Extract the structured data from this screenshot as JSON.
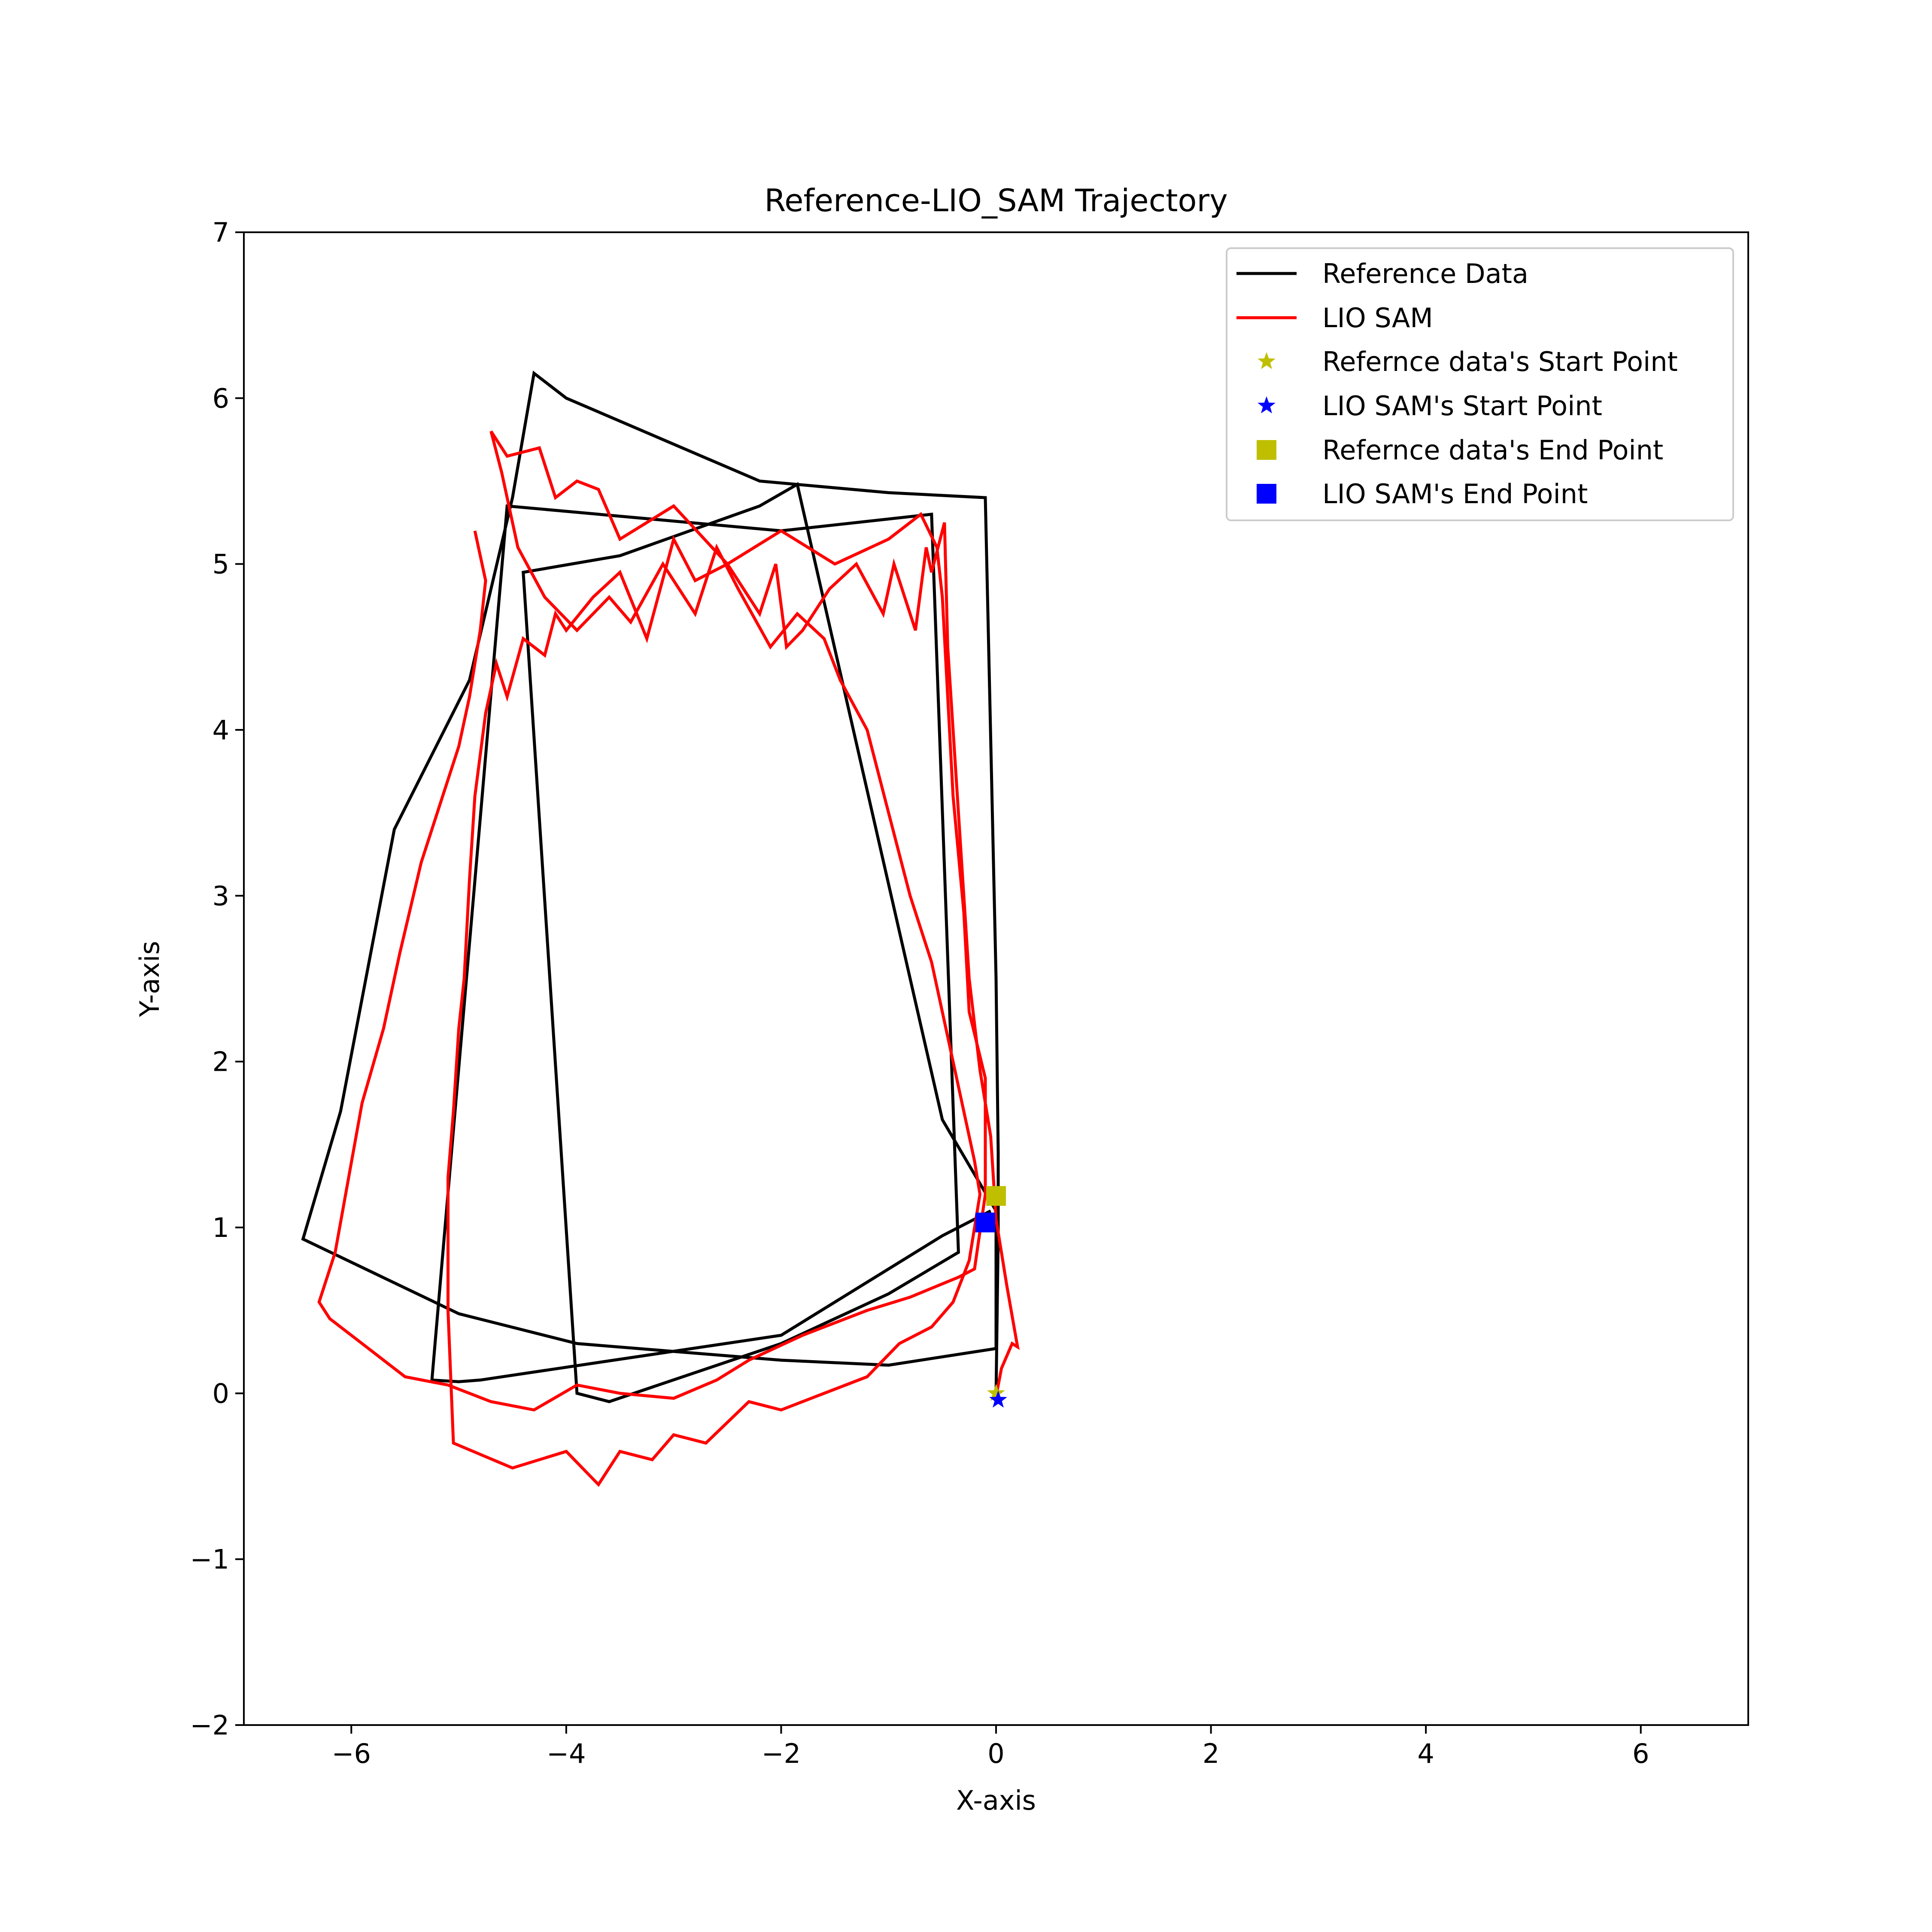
{
  "chart_data": {
    "type": "line",
    "title": "Reference-LIO_SAM Trajectory",
    "xlabel": "X-axis",
    "ylabel": "Y-axis",
    "xlim": [
      -7,
      7
    ],
    "ylim": [
      -2,
      7
    ],
    "xticks": [
      -6,
      -4,
      -2,
      0,
      2,
      4,
      6
    ],
    "yticks": [
      -2,
      -1,
      0,
      1,
      2,
      3,
      4,
      5,
      6,
      7
    ],
    "xtick_labels": [
      "−6",
      "−4",
      "−2",
      "0",
      "2",
      "4",
      "6"
    ],
    "ytick_labels": [
      "−2",
      "−1",
      "0",
      "1",
      "2",
      "3",
      "4",
      "5",
      "6",
      "7"
    ],
    "grid": false,
    "legend_position": "top-right",
    "series": [
      {
        "name": "Reference Data",
        "kind": "line",
        "color": "#000000",
        "points": [
          [
            0.0,
            0.0
          ],
          [
            0.02,
            0.95
          ],
          [
            0.02,
            1.45
          ],
          [
            0.0,
            2.5
          ],
          [
            -0.1,
            5.4
          ],
          [
            -1.0,
            5.43
          ],
          [
            -2.2,
            5.5
          ],
          [
            -4.0,
            6.0
          ],
          [
            -4.3,
            6.15
          ],
          [
            -4.5,
            5.4
          ],
          [
            -4.9,
            4.3
          ],
          [
            -5.6,
            3.4
          ],
          [
            -6.1,
            1.7
          ],
          [
            -6.45,
            0.93
          ],
          [
            -5.0,
            0.48
          ],
          [
            -3.9,
            0.3
          ],
          [
            -2.0,
            0.2
          ],
          [
            -1.0,
            0.17
          ],
          [
            0.0,
            0.27
          ],
          [
            0.0,
            1.1
          ],
          [
            -0.5,
            1.65
          ],
          [
            -1.85,
            5.48
          ],
          [
            -2.2,
            5.35
          ],
          [
            -3.5,
            5.05
          ],
          [
            -4.4,
            4.95
          ],
          [
            -3.9,
            0.0
          ],
          [
            -3.6,
            -0.05
          ],
          [
            -2.0,
            0.3
          ],
          [
            -1.0,
            0.6
          ],
          [
            -0.35,
            0.85
          ],
          [
            -0.6,
            5.3
          ],
          [
            -2.0,
            5.2
          ],
          [
            -4.55,
            5.35
          ],
          [
            -5.25,
            0.08
          ],
          [
            -5.0,
            0.07
          ],
          [
            -4.8,
            0.08
          ],
          [
            -2.0,
            0.35
          ],
          [
            -0.5,
            0.95
          ],
          [
            -0.05,
            1.1
          ]
        ]
      },
      {
        "name": "LIO SAM",
        "kind": "line",
        "color": "#ff0000",
        "points": [
          [
            0.0,
            -0.02
          ],
          [
            0.05,
            0.15
          ],
          [
            0.15,
            0.3
          ],
          [
            0.2,
            0.28
          ],
          [
            0.1,
            0.65
          ],
          [
            0.0,
            1.05
          ],
          [
            -0.05,
            1.55
          ],
          [
            -0.15,
            1.95
          ],
          [
            -0.25,
            2.5
          ],
          [
            -0.3,
            3.0
          ],
          [
            -0.35,
            3.5
          ],
          [
            -0.4,
            4.0
          ],
          [
            -0.45,
            4.5
          ],
          [
            -0.48,
            5.25
          ],
          [
            -0.6,
            4.95
          ],
          [
            -0.65,
            5.1
          ],
          [
            -0.75,
            4.6
          ],
          [
            -0.95,
            5.0
          ],
          [
            -1.05,
            4.7
          ],
          [
            -1.3,
            5.0
          ],
          [
            -1.55,
            4.85
          ],
          [
            -1.8,
            4.6
          ],
          [
            -1.95,
            4.5
          ],
          [
            -2.05,
            5.0
          ],
          [
            -2.2,
            4.7
          ],
          [
            -2.5,
            5.0
          ],
          [
            -2.8,
            4.9
          ],
          [
            -3.0,
            5.15
          ],
          [
            -3.25,
            4.55
          ],
          [
            -3.5,
            4.95
          ],
          [
            -3.75,
            4.8
          ],
          [
            -4.0,
            4.6
          ],
          [
            -4.1,
            4.7
          ],
          [
            -4.2,
            4.45
          ],
          [
            -4.4,
            4.55
          ],
          [
            -4.55,
            4.2
          ],
          [
            -4.65,
            4.4
          ],
          [
            -4.75,
            4.1
          ],
          [
            -4.85,
            3.6
          ],
          [
            -4.9,
            3.1
          ],
          [
            -4.95,
            2.5
          ],
          [
            -5.0,
            2.2
          ],
          [
            -5.05,
            1.7
          ],
          [
            -5.1,
            1.3
          ],
          [
            -5.1,
            0.5
          ],
          [
            -5.05,
            -0.3
          ],
          [
            -4.5,
            -0.45
          ],
          [
            -4.0,
            -0.35
          ],
          [
            -3.7,
            -0.55
          ],
          [
            -3.5,
            -0.35
          ],
          [
            -3.2,
            -0.4
          ],
          [
            -3.0,
            -0.25
          ],
          [
            -2.7,
            -0.3
          ],
          [
            -2.3,
            -0.05
          ],
          [
            -2.0,
            -0.1
          ],
          [
            -1.6,
            0.0
          ],
          [
            -1.2,
            0.1
          ],
          [
            -0.9,
            0.3
          ],
          [
            -0.6,
            0.4
          ],
          [
            -0.4,
            0.55
          ],
          [
            -0.25,
            0.8
          ],
          [
            -0.15,
            1.2
          ],
          [
            -0.2,
            1.4
          ],
          [
            -0.4,
            2.0
          ],
          [
            -0.6,
            2.6
          ],
          [
            -0.8,
            3.0
          ],
          [
            -1.0,
            3.5
          ],
          [
            -1.2,
            4.0
          ],
          [
            -1.45,
            4.3
          ],
          [
            -1.6,
            4.55
          ],
          [
            -1.85,
            4.7
          ],
          [
            -2.1,
            4.5
          ],
          [
            -2.4,
            4.85
          ],
          [
            -2.6,
            5.1
          ],
          [
            -2.8,
            4.7
          ],
          [
            -3.1,
            5.0
          ],
          [
            -3.4,
            4.65
          ],
          [
            -3.6,
            4.8
          ],
          [
            -3.9,
            4.6
          ],
          [
            -4.2,
            4.8
          ],
          [
            -4.45,
            5.1
          ],
          [
            -4.6,
            5.55
          ],
          [
            -4.7,
            5.8
          ],
          [
            -4.55,
            5.65
          ],
          [
            -4.25,
            5.7
          ],
          [
            -4.1,
            5.4
          ],
          [
            -3.9,
            5.5
          ],
          [
            -3.7,
            5.45
          ],
          [
            -3.5,
            5.15
          ],
          [
            -3.0,
            5.35
          ],
          [
            -2.5,
            5.0
          ],
          [
            -2.0,
            5.2
          ],
          [
            -1.5,
            5.0
          ],
          [
            -1.0,
            5.15
          ],
          [
            -0.7,
            5.3
          ],
          [
            -0.55,
            5.1
          ],
          [
            -0.5,
            4.8
          ],
          [
            -0.4,
            3.6
          ],
          [
            -0.3,
            2.9
          ],
          [
            -0.25,
            2.3
          ],
          [
            -0.1,
            1.9
          ],
          [
            -0.1,
            1.2
          ],
          [
            -0.2,
            0.75
          ],
          [
            -0.35,
            0.7
          ],
          [
            -0.8,
            0.58
          ],
          [
            -1.2,
            0.5
          ],
          [
            -1.8,
            0.35
          ],
          [
            -2.3,
            0.2
          ],
          [
            -2.6,
            0.08
          ],
          [
            -3.0,
            -0.03
          ],
          [
            -3.5,
            0.0
          ],
          [
            -3.9,
            0.05
          ],
          [
            -4.3,
            -0.1
          ],
          [
            -4.7,
            -0.05
          ],
          [
            -5.1,
            0.05
          ],
          [
            -5.5,
            0.1
          ],
          [
            -5.9,
            0.3
          ],
          [
            -6.2,
            0.45
          ],
          [
            -6.3,
            0.55
          ],
          [
            -6.15,
            0.85
          ],
          [
            -5.9,
            1.75
          ],
          [
            -5.7,
            2.2
          ],
          [
            -5.55,
            2.65
          ],
          [
            -5.35,
            3.2
          ],
          [
            -5.15,
            3.6
          ],
          [
            -5.0,
            3.9
          ],
          [
            -4.9,
            4.2
          ],
          [
            -4.8,
            4.6
          ],
          [
            -4.75,
            4.9
          ],
          [
            -4.85,
            5.2
          ]
        ]
      },
      {
        "name": "Refernce data's Start Point",
        "kind": "marker",
        "marker": "star",
        "color": "#bfbf00",
        "points": [
          [
            0.0,
            0.0
          ]
        ]
      },
      {
        "name": "LIO SAM's Start Point",
        "kind": "marker",
        "marker": "star",
        "color": "#0000ff",
        "points": [
          [
            0.02,
            -0.04
          ]
        ]
      },
      {
        "name": "Refernce data's End Point",
        "kind": "marker",
        "marker": "square",
        "color": "#bfbf00",
        "points": [
          [
            0.0,
            1.19
          ]
        ]
      },
      {
        "name": "LIO SAM's End Point",
        "kind": "marker",
        "marker": "square",
        "color": "#0000ff",
        "points": [
          [
            -0.1,
            1.03
          ]
        ]
      }
    ]
  }
}
